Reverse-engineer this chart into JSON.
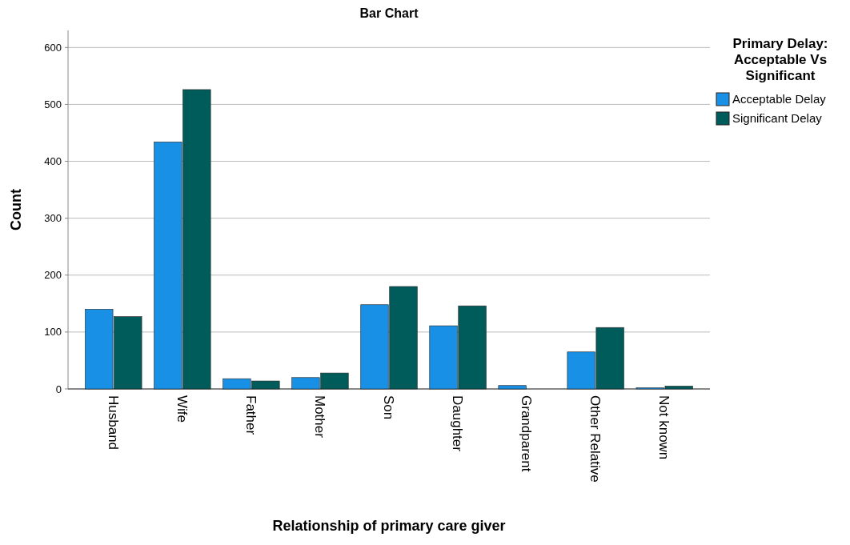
{
  "chart_data": {
    "type": "bar",
    "title": "Bar Chart",
    "xlabel": "Relationship of primary care giver",
    "ylabel": "Count",
    "legend_title": "Primary Delay: Acceptable Vs Significant",
    "categories": [
      "Husband",
      "Wife",
      "Father",
      "Mother",
      "Son",
      "Daughter",
      "Grandparent",
      "Other Relative",
      "Not known"
    ],
    "series": [
      {
        "name": "Acceptable Delay",
        "color": "#1790e6",
        "values": [
          140,
          434,
          18,
          20,
          148,
          111,
          6,
          65,
          2
        ]
      },
      {
        "name": "Significant Delay",
        "color": "#005c5a",
        "values": [
          127,
          526,
          14,
          28,
          180,
          146,
          null,
          108,
          5
        ]
      }
    ],
    "ylim": [
      0,
      630
    ],
    "yticks": [
      0,
      100,
      200,
      300,
      400,
      500,
      600
    ],
    "grid": "y",
    "legend": "top right"
  }
}
